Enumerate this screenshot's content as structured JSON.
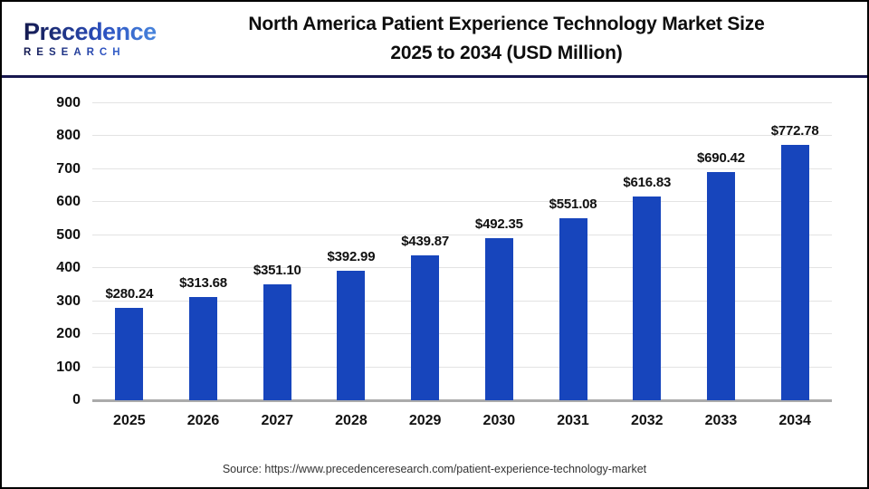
{
  "header": {
    "logo": {
      "text": "Precedence",
      "sub": "RESEARCH"
    },
    "title_line1": "North America Patient Experience Technology Market Size",
    "title_line2": "2025 to 2034 (USD Million)"
  },
  "chart_data": {
    "type": "bar",
    "title": "North America Patient Experience Technology Market Size 2025 to 2034 (USD Million)",
    "categories": [
      "2025",
      "2026",
      "2027",
      "2028",
      "2029",
      "2030",
      "2031",
      "2032",
      "2033",
      "2034"
    ],
    "values": [
      280.24,
      313.68,
      351.1,
      392.99,
      439.87,
      492.35,
      551.08,
      616.83,
      690.42,
      772.78
    ],
    "value_labels": [
      "$280.24",
      "$313.68",
      "$351.10",
      "$392.99",
      "$439.87",
      "$492.35",
      "$551.08",
      "$616.83",
      "$690.42",
      "$772.78"
    ],
    "xlabel": "",
    "ylabel": "",
    "ylim": [
      0,
      900
    ],
    "ytick_step": 100,
    "yticks": [
      0,
      100,
      200,
      300,
      400,
      500,
      600,
      700,
      800,
      900
    ],
    "grid": true,
    "legend_position": "none",
    "bar_color": "#1745BC"
  },
  "footer": {
    "source": "Source: https://www.precedenceresearch.com/patient-experience-technology-market"
  },
  "colors": {
    "bar": "#1745BC",
    "header_rule": "#17174F",
    "grid_line": "#E3E3E3",
    "axis_line": "#ABABAB",
    "logo_dark": "#14194E",
    "logo_blue": "#2E62CC",
    "logo_light": "#4F92E3"
  }
}
